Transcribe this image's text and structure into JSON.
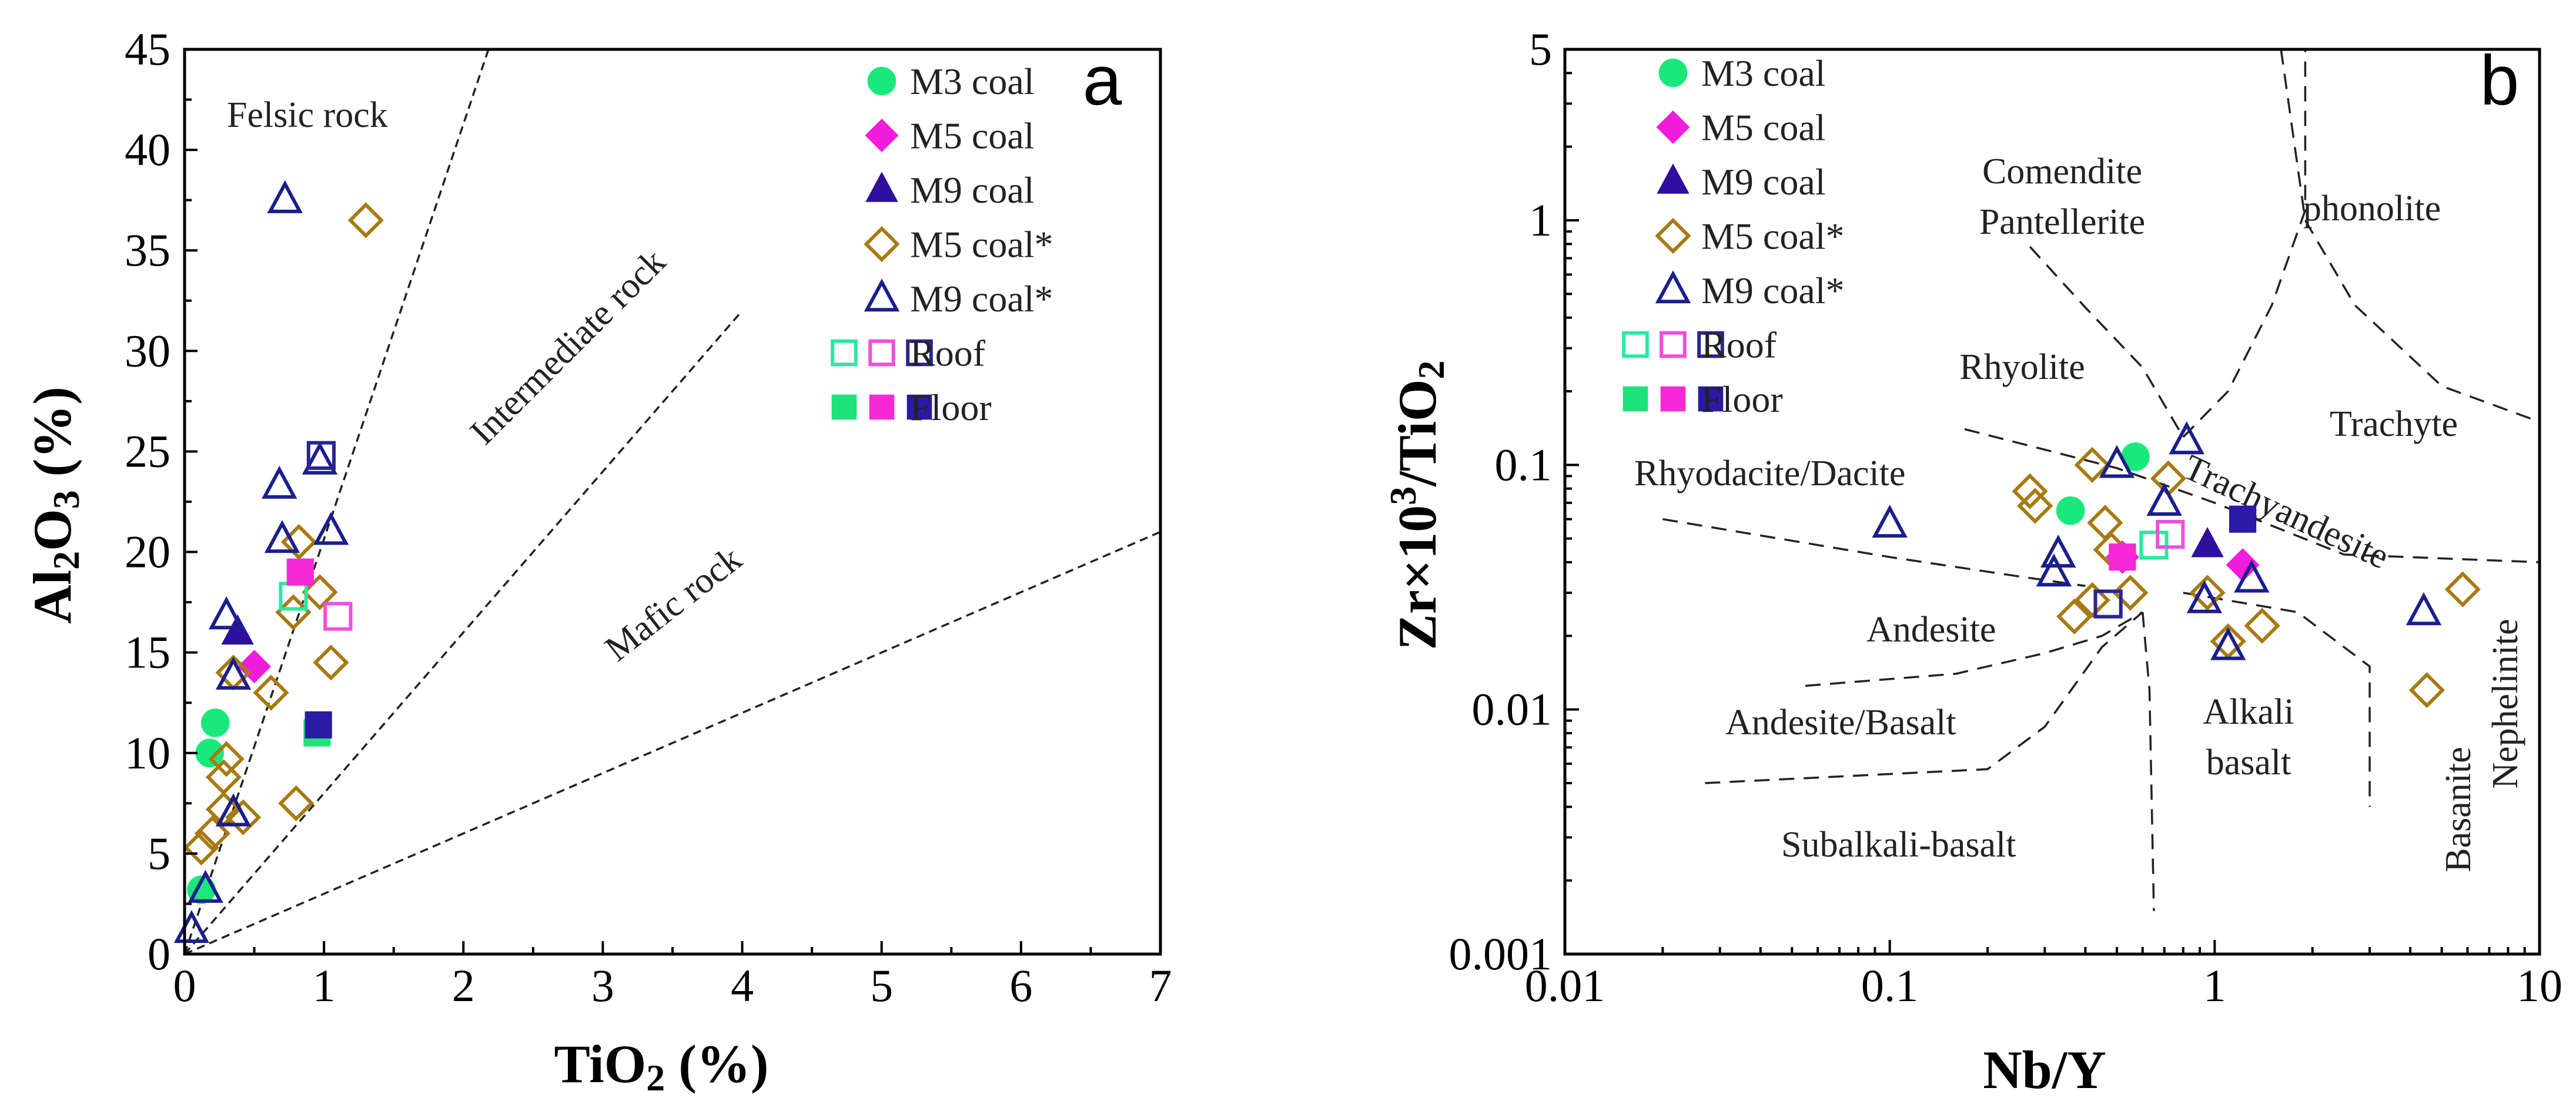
{
  "colors": {
    "m3": "#19e87a",
    "m5": "#f21cdc",
    "m9": "#2e0f9e",
    "m5star": "#a77a12",
    "m9star": "#1b1f8c",
    "roof_m3": "#2be8a0",
    "roof_m5": "#ef4fd9",
    "roof_m9": "#2a2590",
    "floor_m3": "#1de37a",
    "floor_m5": "#f728d6",
    "floor_m9": "#2a1aa5"
  },
  "chart_data": [
    {
      "panel": "a",
      "type": "scatter",
      "xlabel": "TiO2 (%)",
      "ylabel": "Al2O3 (%)",
      "xlim": [
        0,
        7
      ],
      "ylim": [
        0,
        45
      ],
      "xticks": [
        "0",
        "1",
        "2",
        "3",
        "4",
        "5",
        "6",
        "7"
      ],
      "yticks": [
        "0",
        "5",
        "10",
        "15",
        "20",
        "25",
        "30",
        "35",
        "40",
        "45"
      ],
      "region_labels": [
        "Felsic rock",
        "Intermediate rock",
        "Mafic rock"
      ],
      "boundary_lines": [
        {
          "name": "felsic-intermediate",
          "from": [
            0,
            0
          ],
          "to": [
            2.18,
            45
          ]
        },
        {
          "name": "intermediate-mafic",
          "from": [
            0,
            0
          ],
          "to": [
            4.0,
            32
          ]
        },
        {
          "name": "mafic-lower",
          "from": [
            0,
            0
          ],
          "to": [
            7.0,
            21
          ]
        }
      ],
      "legend": [
        {
          "label": "M3 coal",
          "marker": "circle",
          "series": "m3"
        },
        {
          "label": "M5 coal",
          "marker": "diamond",
          "series": "m5"
        },
        {
          "label": "M9 coal",
          "marker": "triangle",
          "series": "m9"
        },
        {
          "label": "M5 coal*",
          "marker": "diamond-open",
          "series": "m5star"
        },
        {
          "label": "M9 coal*",
          "marker": "triangle-open",
          "series": "m9star"
        },
        {
          "label": "Roof",
          "marker": "square-open-triple",
          "series": "roof"
        },
        {
          "label": "Floor",
          "marker": "square-filled-triple",
          "series": "floor"
        }
      ],
      "series": [
        {
          "name": "M3 coal",
          "key": "m3",
          "marker": "circle",
          "filled": true,
          "points": [
            [
              0.22,
              11.5
            ],
            [
              0.18,
              10.0
            ],
            [
              0.12,
              3.2
            ]
          ]
        },
        {
          "name": "M5 coal",
          "key": "m5",
          "marker": "diamond",
          "filled": true,
          "points": [
            [
              0.5,
              14.3
            ]
          ]
        },
        {
          "name": "M9 coal",
          "key": "m9",
          "marker": "triangle",
          "filled": true,
          "points": [
            [
              0.38,
              16.0
            ]
          ]
        },
        {
          "name": "M5 coal*",
          "key": "m5star",
          "marker": "diamond",
          "filled": false,
          "points": [
            [
              1.3,
              36.5
            ],
            [
              0.82,
              20.5
            ],
            [
              0.97,
              18.0
            ],
            [
              0.78,
              17.0
            ],
            [
              1.05,
              14.5
            ],
            [
              0.35,
              14.0
            ],
            [
              0.62,
              13.0
            ],
            [
              0.3,
              9.7
            ],
            [
              0.28,
              8.8
            ],
            [
              0.28,
              7.2
            ],
            [
              0.42,
              6.8
            ],
            [
              0.8,
              7.5
            ],
            [
              0.2,
              6.0
            ],
            [
              0.12,
              5.3
            ]
          ]
        },
        {
          "name": "M9 coal*",
          "key": "m9star",
          "marker": "triangle",
          "filled": false,
          "points": [
            [
              0.72,
              37.5
            ],
            [
              0.97,
              24.5
            ],
            [
              0.68,
              23.3
            ],
            [
              1.05,
              21.0
            ],
            [
              0.7,
              20.6
            ],
            [
              0.3,
              16.8
            ],
            [
              0.35,
              13.8
            ],
            [
              0.35,
              7.0
            ],
            [
              0.15,
              3.2
            ],
            [
              0.05,
              1.2
            ]
          ]
        },
        {
          "name": "Roof",
          "key": "roof",
          "marker": "square",
          "filled": false,
          "points": [
            [
              0.78,
              17.8,
              "roof_m3"
            ],
            [
              1.1,
              16.8,
              "roof_m5"
            ],
            [
              0.98,
              24.8,
              "roof_m9"
            ]
          ]
        },
        {
          "name": "Floor",
          "key": "floor",
          "marker": "square",
          "filled": true,
          "points": [
            [
              0.95,
              11.0,
              "floor_m3"
            ],
            [
              0.83,
              19.0,
              "floor_m5"
            ],
            [
              0.96,
              11.4,
              "floor_m9"
            ]
          ]
        }
      ]
    },
    {
      "panel": "b",
      "type": "scatter",
      "xscale": "log",
      "yscale": "log",
      "xlabel": "Nb/Y",
      "ylabel": "Zr×10³/TiO₂",
      "xlim": [
        0.01,
        10
      ],
      "ylim": [
        0.001,
        5
      ],
      "xticks": [
        "0.01",
        "0.1",
        "1",
        "10"
      ],
      "yticks": [
        "0.001",
        "0.01",
        "0.1",
        "1",
        "5"
      ],
      "region_labels": [
        "Comendite",
        "Pantellerite",
        "phonolite",
        "Rhyolite",
        "Trachyte",
        "Rhyodacite/Dacite",
        "Trachyandesite",
        "Andesite",
        "Andesite/Basalt",
        "Alkali",
        "basalt",
        "Basanite",
        "Nephelinite",
        "Subalkali-basalt"
      ],
      "boundary_lines": [
        {
          "name": "rhyolite-lower",
          "points": [
            [
              0.17,
              0.14
            ],
            [
              0.5,
              0.097
            ],
            [
              1.0,
              0.07
            ],
            [
              2.5,
              0.043
            ],
            [
              10,
              0.04
            ]
          ]
        },
        {
          "name": "dacite-andesite",
          "points": [
            [
              0.02,
              0.06
            ],
            [
              0.1,
              0.042
            ],
            [
              0.25,
              0.035
            ],
            [
              0.4,
              0.032
            ]
          ]
        },
        {
          "name": "trachyandesite-lower",
          "points": [
            [
              0.8,
              0.03
            ],
            [
              1.8,
              0.025
            ],
            [
              3.0,
              0.015
            ],
            [
              3.0,
              0.004
            ]
          ]
        },
        {
          "name": "andesite-basalt-upper",
          "points": [
            [
              0.055,
              0.0125
            ],
            [
              0.16,
              0.014
            ],
            [
              0.3,
              0.017
            ],
            [
              0.45,
              0.02
            ],
            [
              0.6,
              0.025
            ]
          ]
        },
        {
          "name": "andesite-basalt-lower",
          "points": [
            [
              0.027,
              0.005
            ],
            [
              0.2,
              0.0057
            ],
            [
              0.3,
              0.0085
            ],
            [
              0.45,
              0.018
            ],
            [
              0.6,
              0.025
            ]
          ]
        },
        {
          "name": "alkali-subalkali",
          "points": [
            [
              0.6,
              0.025
            ],
            [
              0.63,
              0.012
            ],
            [
              0.65,
              0.0015
            ]
          ]
        },
        {
          "name": "comendite-left",
          "points": [
            [
              0.27,
              0.78
            ],
            [
              0.4,
              0.44
            ],
            [
              0.6,
              0.25
            ],
            [
              0.8,
              0.13
            ]
          ]
        },
        {
          "name": "comendite-right",
          "points": [
            [
              0.8,
              0.13
            ],
            [
              1.1,
              0.2
            ],
            [
              1.5,
              0.45
            ],
            [
              1.9,
              1.1
            ],
            [
              1.9,
              5.0
            ]
          ]
        },
        {
          "name": "phonolite-trachyte",
          "points": [
            [
              1.6,
              5.0
            ],
            [
              1.9,
              1.0
            ],
            [
              2.7,
              0.45
            ],
            [
              5.0,
              0.21
            ],
            [
              10,
              0.15
            ]
          ]
        }
      ],
      "legend": [
        {
          "label": "M3 coal",
          "marker": "circle",
          "series": "m3"
        },
        {
          "label": "M5 coal",
          "marker": "diamond",
          "series": "m5"
        },
        {
          "label": "M9 coal",
          "marker": "triangle",
          "series": "m9"
        },
        {
          "label": "M5 coal*",
          "marker": "diamond-open",
          "series": "m5star"
        },
        {
          "label": "M9 coal*",
          "marker": "triangle-open",
          "series": "m9star"
        },
        {
          "label": "Roof",
          "marker": "square-open-triple",
          "series": "roof"
        },
        {
          "label": "Floor",
          "marker": "square-filled-triple",
          "series": "floor"
        }
      ],
      "series": [
        {
          "name": "M3 coal",
          "key": "m3",
          "marker": "circle",
          "filled": true,
          "points": [
            [
              0.57,
              0.108
            ],
            [
              0.36,
              0.065
            ]
          ]
        },
        {
          "name": "M5 coal",
          "key": "m5",
          "marker": "diamond",
          "filled": true,
          "points": [
            [
              0.52,
              0.042
            ],
            [
              1.22,
              0.039
            ]
          ]
        },
        {
          "name": "M9 coal",
          "key": "m9",
          "marker": "triangle",
          "filled": true,
          "points": [
            [
              0.95,
              0.047
            ]
          ]
        },
        {
          "name": "M5 coal*",
          "key": "m5star",
          "marker": "diamond",
          "filled": false,
          "points": [
            [
              0.27,
              0.078
            ],
            [
              0.28,
              0.068
            ],
            [
              0.42,
              0.1
            ],
            [
              0.46,
              0.058
            ],
            [
              0.48,
              0.045
            ],
            [
              0.55,
              0.03
            ],
            [
              0.42,
              0.028
            ],
            [
              0.37,
              0.024
            ],
            [
              0.72,
              0.088
            ],
            [
              0.95,
              0.03
            ],
            [
              1.1,
              0.019
            ],
            [
              1.4,
              0.022
            ],
            [
              4.5,
              0.012
            ],
            [
              5.8,
              0.031
            ]
          ]
        },
        {
          "name": "M9 coal*",
          "key": "m9star",
          "marker": "triangle",
          "filled": false,
          "points": [
            [
              0.1,
              0.057
            ],
            [
              0.33,
              0.043
            ],
            [
              0.32,
              0.036
            ],
            [
              0.5,
              0.1
            ],
            [
              0.7,
              0.07
            ],
            [
              0.82,
              0.125
            ],
            [
              0.93,
              0.028
            ],
            [
              1.1,
              0.018
            ],
            [
              1.3,
              0.034
            ],
            [
              4.4,
              0.025
            ]
          ]
        },
        {
          "name": "Roof",
          "key": "roof",
          "marker": "square",
          "filled": false,
          "points": [
            [
              0.65,
              0.047,
              "roof_m3"
            ],
            [
              0.73,
              0.052,
              "roof_m5"
            ],
            [
              0.47,
              0.027,
              "roof_m9"
            ]
          ]
        },
        {
          "name": "Floor",
          "key": "floor",
          "marker": "square",
          "filled": true,
          "points": [
            [
              0.52,
              0.042,
              "floor_m5"
            ],
            [
              1.22,
              0.06,
              "floor_m9"
            ]
          ]
        }
      ]
    }
  ]
}
